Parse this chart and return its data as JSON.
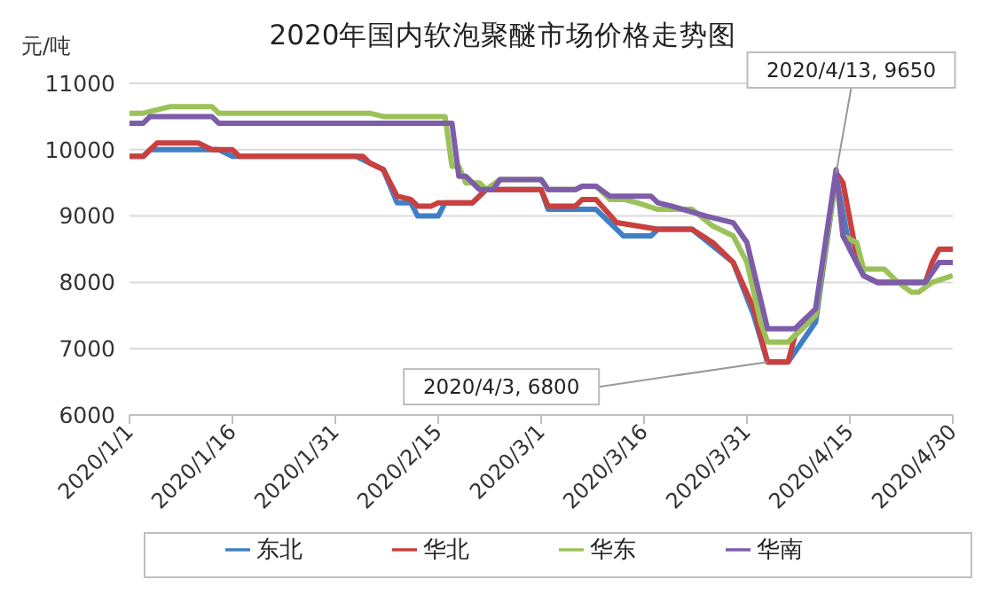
{
  "chart_data": {
    "type": "line",
    "title": "2020年国内软泡聚醚市场价格走势图",
    "ylabel": "元/吨",
    "xlim": [
      "2020-01-01",
      "2020-04-30"
    ],
    "xticks": [
      {
        "value": "2020-01-01",
        "label": "2020/1/1"
      },
      {
        "value": "2020-01-16",
        "label": "2020/1/16"
      },
      {
        "value": "2020-01-31",
        "label": "2020/1/31"
      },
      {
        "value": "2020-02-15",
        "label": "2020/2/15"
      },
      {
        "value": "2020-03-01",
        "label": "2020/3/1"
      },
      {
        "value": "2020-03-16",
        "label": "2020/3/16"
      },
      {
        "value": "2020-03-31",
        "label": "2020/3/31"
      },
      {
        "value": "2020-04-15",
        "label": "2020/4/15"
      },
      {
        "value": "2020-04-30",
        "label": "2020/4/30"
      }
    ],
    "ylim": [
      6000,
      11000
    ],
    "yticks": [
      6000,
      7000,
      8000,
      9000,
      10000,
      11000
    ],
    "grid": "y",
    "legend": "bottom",
    "series": [
      {
        "name": "东北",
        "color": "#3f7fc6",
        "x": [
          "2020-01-01",
          "2020-01-03",
          "2020-01-04",
          "2020-01-14",
          "2020-01-16",
          "2020-02-03",
          "2020-02-05",
          "2020-02-07",
          "2020-02-09",
          "2020-02-11",
          "2020-02-12",
          "2020-02-15",
          "2020-02-16",
          "2020-02-20",
          "2020-02-22",
          "2020-03-01",
          "2020-03-02",
          "2020-03-09",
          "2020-03-12",
          "2020-03-13",
          "2020-03-17",
          "2020-03-18",
          "2020-03-23",
          "2020-03-26",
          "2020-03-29",
          "2020-04-01",
          "2020-04-03",
          "2020-04-06",
          "2020-04-08",
          "2020-04-10",
          "2020-04-13",
          "2020-04-15",
          "2020-04-17",
          "2020-04-19",
          "2020-04-26",
          "2020-04-28",
          "2020-04-30"
        ],
        "values": [
          9900,
          9900,
          10000,
          10000,
          9900,
          9900,
          9800,
          9700,
          9200,
          9200,
          9000,
          9000,
          9200,
          9200,
          9400,
          9400,
          9100,
          9100,
          8800,
          8700,
          8700,
          8800,
          8800,
          8550,
          8300,
          7500,
          6800,
          6800,
          7100,
          7400,
          9600,
          8500,
          8100,
          8000,
          8000,
          8300,
          8300
        ]
      },
      {
        "name": "华北",
        "color": "#c9403e",
        "x": [
          "2020-01-01",
          "2020-01-03",
          "2020-01-05",
          "2020-01-11",
          "2020-01-13",
          "2020-01-16",
          "2020-01-17",
          "2020-02-04",
          "2020-02-05",
          "2020-02-07",
          "2020-02-09",
          "2020-02-11",
          "2020-02-12",
          "2020-02-14",
          "2020-02-15",
          "2020-02-20",
          "2020-02-22",
          "2020-03-01",
          "2020-03-02",
          "2020-03-06",
          "2020-03-07",
          "2020-03-09",
          "2020-03-12",
          "2020-03-18",
          "2020-03-23",
          "2020-03-26",
          "2020-03-29",
          "2020-04-01",
          "2020-04-03",
          "2020-04-06",
          "2020-04-07",
          "2020-04-10",
          "2020-04-13",
          "2020-04-14",
          "2020-04-16",
          "2020-04-17",
          "2020-04-19",
          "2020-04-26",
          "2020-04-27",
          "2020-04-28",
          "2020-04-30"
        ],
        "values": [
          9900,
          9900,
          10100,
          10100,
          10000,
          10000,
          9900,
          9900,
          9800,
          9700,
          9300,
          9250,
          9150,
          9150,
          9200,
          9200,
          9400,
          9400,
          9150,
          9150,
          9250,
          9250,
          8900,
          8800,
          8800,
          8600,
          8300,
          7600,
          6800,
          6800,
          7200,
          7500,
          9650,
          9500,
          8400,
          8100,
          8000,
          8000,
          8300,
          8500,
          8500
        ]
      },
      {
        "name": "华东",
        "color": "#9bc25a",
        "x": [
          "2020-01-01",
          "2020-01-03",
          "2020-01-05",
          "2020-01-07",
          "2020-01-13",
          "2020-01-14",
          "2020-02-05",
          "2020-02-07",
          "2020-02-16",
          "2020-02-17",
          "2020-02-18",
          "2020-02-19",
          "2020-02-21",
          "2020-02-22",
          "2020-02-24",
          "2020-03-01",
          "2020-03-02",
          "2020-03-06",
          "2020-03-07",
          "2020-03-09",
          "2020-03-11",
          "2020-03-13",
          "2020-03-15",
          "2020-03-18",
          "2020-03-23",
          "2020-03-26",
          "2020-03-29",
          "2020-03-31",
          "2020-04-02",
          "2020-04-03",
          "2020-04-06",
          "2020-04-08",
          "2020-04-10",
          "2020-04-13",
          "2020-04-14",
          "2020-04-16",
          "2020-04-17",
          "2020-04-20",
          "2020-04-22",
          "2020-04-24",
          "2020-04-25",
          "2020-04-27",
          "2020-04-30"
        ],
        "values": [
          10550,
          10550,
          10600,
          10650,
          10650,
          10550,
          10550,
          10500,
          10500,
          9750,
          9750,
          9500,
          9500,
          9400,
          9550,
          9550,
          9400,
          9400,
          9450,
          9450,
          9250,
          9250,
          9200,
          9100,
          9100,
          8850,
          8700,
          8300,
          7400,
          7100,
          7100,
          7300,
          7500,
          9600,
          8700,
          8600,
          8200,
          8200,
          8000,
          7850,
          7850,
          8000,
          8100
        ]
      },
      {
        "name": "华南",
        "color": "#7d5ca8",
        "x": [
          "2020-01-01",
          "2020-01-03",
          "2020-01-04",
          "2020-01-13",
          "2020-01-14",
          "2020-02-17",
          "2020-02-18",
          "2020-02-19",
          "2020-02-20",
          "2020-02-21",
          "2020-02-23",
          "2020-02-24",
          "2020-03-01",
          "2020-03-02",
          "2020-03-06",
          "2020-03-07",
          "2020-03-09",
          "2020-03-11",
          "2020-03-17",
          "2020-03-18",
          "2020-03-20",
          "2020-03-25",
          "2020-03-29",
          "2020-03-31",
          "2020-04-03",
          "2020-04-07",
          "2020-04-08",
          "2020-04-10",
          "2020-04-13",
          "2020-04-14",
          "2020-04-17",
          "2020-04-19",
          "2020-04-26",
          "2020-04-28",
          "2020-04-30"
        ],
        "values": [
          10400,
          10400,
          10500,
          10500,
          10400,
          10400,
          9600,
          9600,
          9500,
          9400,
          9400,
          9550,
          9550,
          9400,
          9400,
          9450,
          9450,
          9300,
          9300,
          9200,
          9150,
          9000,
          8900,
          8600,
          7300,
          7300,
          7400,
          7600,
          9700,
          8700,
          8100,
          8000,
          8000,
          8300,
          8300
        ]
      }
    ],
    "annotations": [
      {
        "text": "2020/4/13, 9650",
        "x": "2020-04-13",
        "y": 9650
      },
      {
        "text": "2020/4/3, 6800",
        "x": "2020-04-03",
        "y": 6800
      }
    ]
  }
}
